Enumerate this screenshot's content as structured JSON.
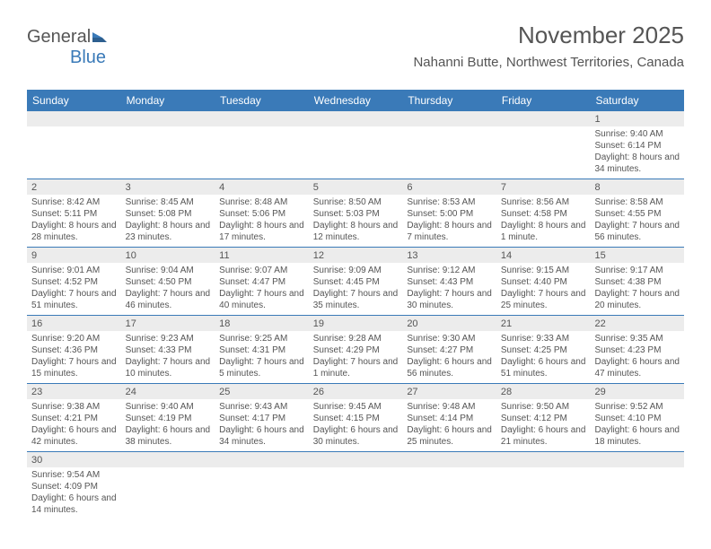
{
  "logo": {
    "part1": "General",
    "part2": "Blue"
  },
  "title": "November 2025",
  "subtitle": "Nahanni Butte, Northwest Territories, Canada",
  "colors": {
    "brand": "#3a7ab8",
    "text": "#555555",
    "gray_bg": "#ececec",
    "background": "#ffffff"
  },
  "font": {
    "title_size": 26,
    "subtitle_size": 15,
    "header_size": 12,
    "cell_size": 10
  },
  "daynames": [
    "Sunday",
    "Monday",
    "Tuesday",
    "Wednesday",
    "Thursday",
    "Friday",
    "Saturday"
  ],
  "weeks": [
    [
      null,
      null,
      null,
      null,
      null,
      null,
      {
        "n": "1",
        "sr": "9:40 AM",
        "ss": "6:14 PM",
        "dl": "8 hours and 34 minutes."
      }
    ],
    [
      {
        "n": "2",
        "sr": "8:42 AM",
        "ss": "5:11 PM",
        "dl": "8 hours and 28 minutes."
      },
      {
        "n": "3",
        "sr": "8:45 AM",
        "ss": "5:08 PM",
        "dl": "8 hours and 23 minutes."
      },
      {
        "n": "4",
        "sr": "8:48 AM",
        "ss": "5:06 PM",
        "dl": "8 hours and 17 minutes."
      },
      {
        "n": "5",
        "sr": "8:50 AM",
        "ss": "5:03 PM",
        "dl": "8 hours and 12 minutes."
      },
      {
        "n": "6",
        "sr": "8:53 AM",
        "ss": "5:00 PM",
        "dl": "8 hours and 7 minutes."
      },
      {
        "n": "7",
        "sr": "8:56 AM",
        "ss": "4:58 PM",
        "dl": "8 hours and 1 minute."
      },
      {
        "n": "8",
        "sr": "8:58 AM",
        "ss": "4:55 PM",
        "dl": "7 hours and 56 minutes."
      }
    ],
    [
      {
        "n": "9",
        "sr": "9:01 AM",
        "ss": "4:52 PM",
        "dl": "7 hours and 51 minutes."
      },
      {
        "n": "10",
        "sr": "9:04 AM",
        "ss": "4:50 PM",
        "dl": "7 hours and 46 minutes."
      },
      {
        "n": "11",
        "sr": "9:07 AM",
        "ss": "4:47 PM",
        "dl": "7 hours and 40 minutes."
      },
      {
        "n": "12",
        "sr": "9:09 AM",
        "ss": "4:45 PM",
        "dl": "7 hours and 35 minutes."
      },
      {
        "n": "13",
        "sr": "9:12 AM",
        "ss": "4:43 PM",
        "dl": "7 hours and 30 minutes."
      },
      {
        "n": "14",
        "sr": "9:15 AM",
        "ss": "4:40 PM",
        "dl": "7 hours and 25 minutes."
      },
      {
        "n": "15",
        "sr": "9:17 AM",
        "ss": "4:38 PM",
        "dl": "7 hours and 20 minutes."
      }
    ],
    [
      {
        "n": "16",
        "sr": "9:20 AM",
        "ss": "4:36 PM",
        "dl": "7 hours and 15 minutes."
      },
      {
        "n": "17",
        "sr": "9:23 AM",
        "ss": "4:33 PM",
        "dl": "7 hours and 10 minutes."
      },
      {
        "n": "18",
        "sr": "9:25 AM",
        "ss": "4:31 PM",
        "dl": "7 hours and 5 minutes."
      },
      {
        "n": "19",
        "sr": "9:28 AM",
        "ss": "4:29 PM",
        "dl": "7 hours and 1 minute."
      },
      {
        "n": "20",
        "sr": "9:30 AM",
        "ss": "4:27 PM",
        "dl": "6 hours and 56 minutes."
      },
      {
        "n": "21",
        "sr": "9:33 AM",
        "ss": "4:25 PM",
        "dl": "6 hours and 51 minutes."
      },
      {
        "n": "22",
        "sr": "9:35 AM",
        "ss": "4:23 PM",
        "dl": "6 hours and 47 minutes."
      }
    ],
    [
      {
        "n": "23",
        "sr": "9:38 AM",
        "ss": "4:21 PM",
        "dl": "6 hours and 42 minutes."
      },
      {
        "n": "24",
        "sr": "9:40 AM",
        "ss": "4:19 PM",
        "dl": "6 hours and 38 minutes."
      },
      {
        "n": "25",
        "sr": "9:43 AM",
        "ss": "4:17 PM",
        "dl": "6 hours and 34 minutes."
      },
      {
        "n": "26",
        "sr": "9:45 AM",
        "ss": "4:15 PM",
        "dl": "6 hours and 30 minutes."
      },
      {
        "n": "27",
        "sr": "9:48 AM",
        "ss": "4:14 PM",
        "dl": "6 hours and 25 minutes."
      },
      {
        "n": "28",
        "sr": "9:50 AM",
        "ss": "4:12 PM",
        "dl": "6 hours and 21 minutes."
      },
      {
        "n": "29",
        "sr": "9:52 AM",
        "ss": "4:10 PM",
        "dl": "6 hours and 18 minutes."
      }
    ],
    [
      {
        "n": "30",
        "sr": "9:54 AM",
        "ss": "4:09 PM",
        "dl": "6 hours and 14 minutes."
      },
      null,
      null,
      null,
      null,
      null,
      null
    ]
  ],
  "labels": {
    "sunrise": "Sunrise: ",
    "sunset": "Sunset: ",
    "daylight": "Daylight: "
  }
}
